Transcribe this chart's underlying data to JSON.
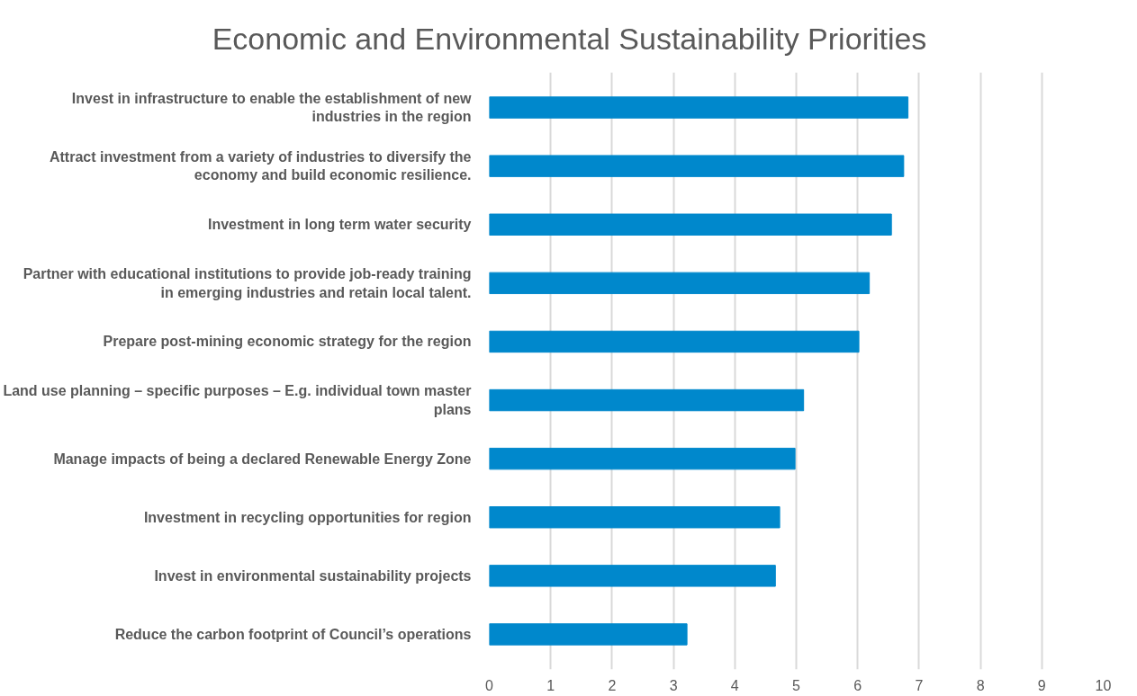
{
  "chart_data": {
    "type": "bar",
    "orientation": "horizontal",
    "title": "Economic and Environmental Sustainability Priorities",
    "categories": [
      "Invest in infrastructure to enable the establishment of new industries in the region",
      "Attract investment from a variety of industries to diversify the economy and build economic resilience.",
      "Investment in long term water security",
      "Partner with educational institutions to provide job-ready training in emerging industries and retain local talent.",
      "Prepare post-mining economic strategy for the region",
      "Land use planning – specific purposes – E.g. individual town master plans",
      "Manage impacts of being a declared Renewable Energy Zone",
      "Investment in recycling opportunities for region",
      "Invest in environmental sustainability projects",
      "Reduce the carbon footprint of Council’s operations"
    ],
    "values": [
      6.82,
      6.75,
      6.55,
      6.19,
      6.02,
      5.12,
      4.98,
      4.73,
      4.66,
      3.22
    ],
    "color": "#0088cc",
    "xlim": [
      0,
      10
    ],
    "xticks": [
      0,
      1,
      2,
      3,
      4,
      5,
      6,
      7,
      8,
      9,
      10
    ],
    "grid": "x"
  }
}
